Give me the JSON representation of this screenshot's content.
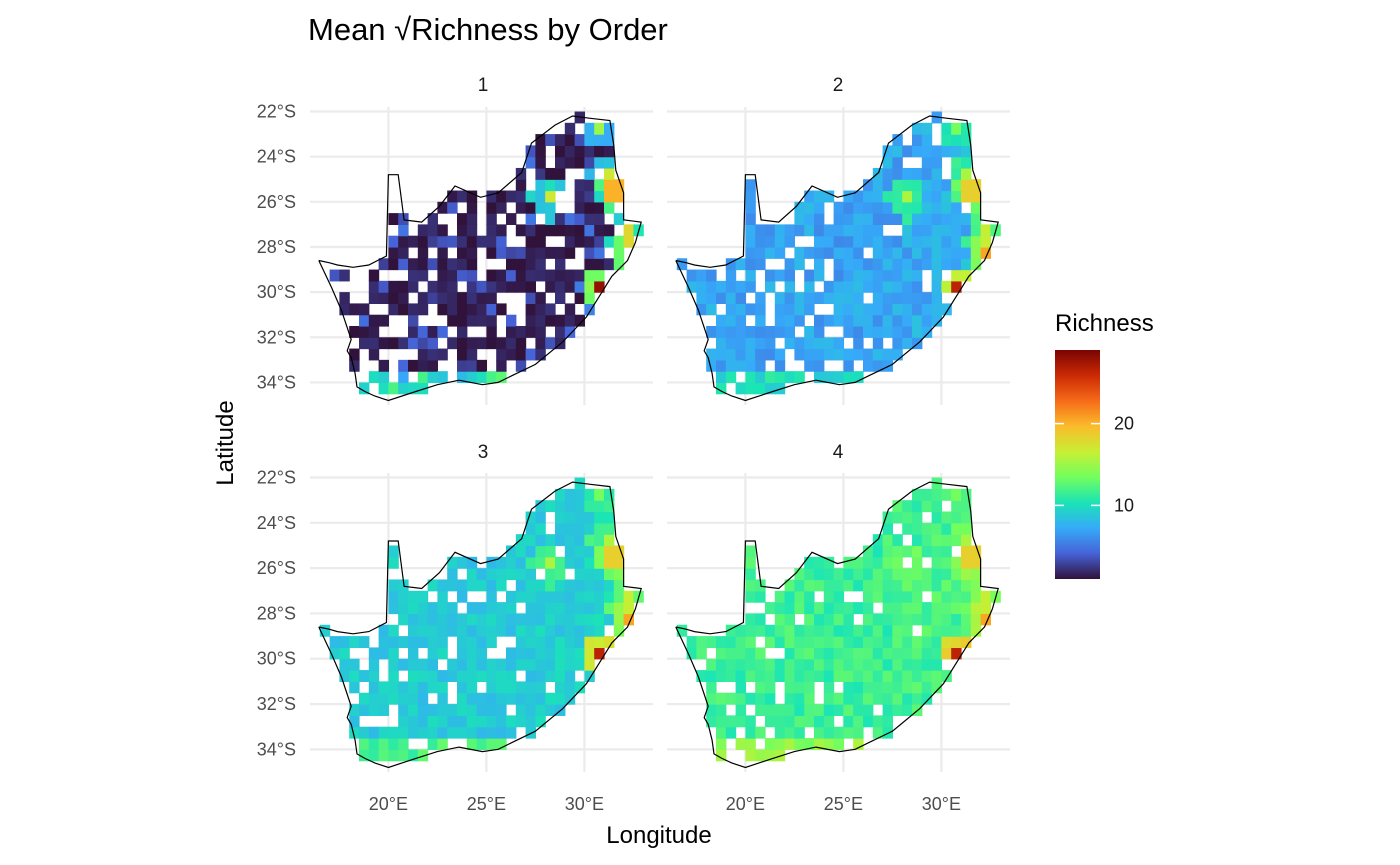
{
  "chart_data": {
    "type": "heatmap",
    "title": "Mean √Richness by Order",
    "xlabel": "Longitude",
    "ylabel": "Latitude",
    "x_range": [
      16,
      33.5
    ],
    "y_range": [
      -35,
      -21.8
    ],
    "x_ticks": [
      20,
      25,
      30
    ],
    "x_tick_labels": [
      "20°E",
      "25°E",
      "30°E"
    ],
    "y_ticks": [
      -22,
      -24,
      -26,
      -28,
      -30,
      -32,
      -34
    ],
    "y_tick_labels": [
      "22°S",
      "24°S",
      "26°S",
      "28°S",
      "30°S",
      "32°S",
      "34°S"
    ],
    "grid": true,
    "legend": {
      "title": "Richness",
      "position": "right",
      "range": [
        1,
        29
      ],
      "breaks": [
        10,
        20
      ],
      "break_labels": [
        "10",
        "20"
      ],
      "palette": [
        "#30123b",
        "#4662d7",
        "#36aaf9",
        "#1ae4b6",
        "#72fe5e",
        "#c7ef34",
        "#fabc2a",
        "#f66b19",
        "#cb2a04",
        "#7a0403"
      ]
    },
    "cell_size_degrees": 0.5,
    "panels": [
      {
        "label": "1",
        "base": 2,
        "noise": 3,
        "dark_fraction": 0.72,
        "coverage": 0.58
      },
      {
        "label": "2",
        "base": 7,
        "noise": 1.2,
        "dark_fraction": 0,
        "coverage": 0.72
      },
      {
        "label": "3",
        "base": 9,
        "noise": 1.0,
        "dark_fraction": 0,
        "coverage": 0.74
      },
      {
        "label": "4",
        "base": 11.5,
        "noise": 1.2,
        "dark_fraction": 0,
        "coverage": 0.76
      }
    ],
    "hotspots": [
      {
        "lon": 31.0,
        "lat": -29.8,
        "value": 28
      },
      {
        "lon": 32.5,
        "lat": -28.3,
        "value": 22
      },
      {
        "lon": 32.2,
        "lat": -27.6,
        "value": 18
      },
      {
        "lon": 31.5,
        "lat": -25.5,
        "value": 20
      },
      {
        "lon": 31.2,
        "lat": -24.8,
        "value": 17
      },
      {
        "lon": 28.2,
        "lat": -25.8,
        "value": 17
      },
      {
        "lon": 30.8,
        "lat": -22.5,
        "value": 15
      }
    ],
    "coastline": [
      [
        16.45,
        -28.6
      ],
      [
        17.0,
        -28.7
      ],
      [
        17.4,
        -28.8
      ],
      [
        18.2,
        -28.9
      ],
      [
        19.0,
        -28.8
      ],
      [
        19.9,
        -28.4
      ],
      [
        20.0,
        -24.8
      ],
      [
        20.5,
        -24.8
      ],
      [
        20.8,
        -26.8
      ],
      [
        21.7,
        -26.9
      ],
      [
        22.6,
        -26.2
      ],
      [
        23.4,
        -25.3
      ],
      [
        24.7,
        -25.8
      ],
      [
        25.6,
        -25.6
      ],
      [
        26.8,
        -24.7
      ],
      [
        27.3,
        -23.4
      ],
      [
        28.5,
        -22.6
      ],
      [
        29.4,
        -22.2
      ],
      [
        30.3,
        -22.3
      ],
      [
        31.3,
        -22.4
      ],
      [
        31.5,
        -23.5
      ],
      [
        31.6,
        -24.6
      ],
      [
        32.0,
        -25.6
      ],
      [
        32.0,
        -26.8
      ],
      [
        32.9,
        -26.9
      ],
      [
        32.6,
        -27.8
      ],
      [
        32.2,
        -28.6
      ],
      [
        31.4,
        -29.3
      ],
      [
        30.9,
        -30.0
      ],
      [
        30.1,
        -31.1
      ],
      [
        28.9,
        -32.2
      ],
      [
        27.5,
        -33.2
      ],
      [
        26.3,
        -33.7
      ],
      [
        25.6,
        -34.0
      ],
      [
        24.8,
        -34.1
      ],
      [
        23.6,
        -33.9
      ],
      [
        22.5,
        -34.1
      ],
      [
        21.4,
        -34.4
      ],
      [
        20.0,
        -34.8
      ],
      [
        19.3,
        -34.6
      ],
      [
        18.8,
        -34.4
      ],
      [
        18.4,
        -34.2
      ],
      [
        18.3,
        -33.6
      ],
      [
        18.1,
        -32.9
      ],
      [
        17.9,
        -32.6
      ],
      [
        18.1,
        -32.1
      ],
      [
        17.6,
        -30.8
      ],
      [
        17.1,
        -29.8
      ],
      [
        16.45,
        -28.6
      ]
    ]
  }
}
